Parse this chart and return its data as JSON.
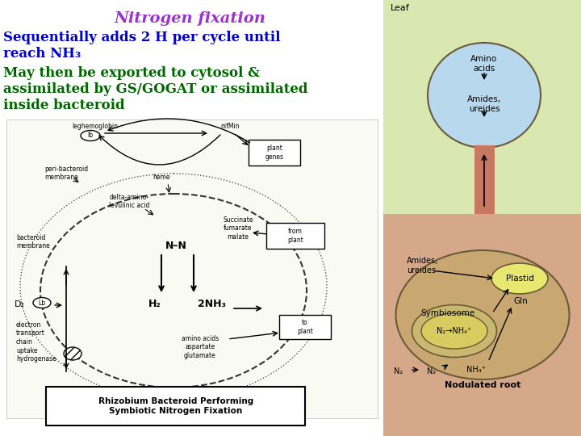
{
  "title": "Nitrogen fixation",
  "title_color": "#9933cc",
  "title_fontsize": 14,
  "line1": "Sequentially adds 2 H per cycle until",
  "line2": "reach NH₃",
  "line3": "May then be exported to cytosol &",
  "line4": "assimilated by GS/GOGAT or assimilated",
  "line5": "inside bacteroid",
  "text_color_blue": "#0000cc",
  "text_color_green": "#006600",
  "text_fontsize": 12,
  "bg_color": "#ffffff",
  "right_top_bg": "#d8e8b8",
  "right_bottom_bg": "#d4a888",
  "stem_color": "#c87860",
  "leaf_bg": "#b8d8ee",
  "leaf_border": "#6a5a3a",
  "plastid_color": "#e8e870",
  "symbiosome_outer": "#c8b870",
  "symbiosome_inner": "#d8cc60",
  "text_leaf": "Leaf",
  "text_amino_acids": "Amino\nacids",
  "text_amides_ureides_top": "Amides,\nureides",
  "text_amides_ureides_bot": "Amides,\nureides",
  "text_plastid": "Plastid",
  "text_symbiosome": "Symbiosome",
  "text_gln": "Gln",
  "text_n2_nh4": "N₂→NH₄⁺",
  "text_nodulated_root": "Nodulated root",
  "diagram_label": "Rhizobium Bacteroid Performing\nSymbiotic Nitrogen Fixation"
}
